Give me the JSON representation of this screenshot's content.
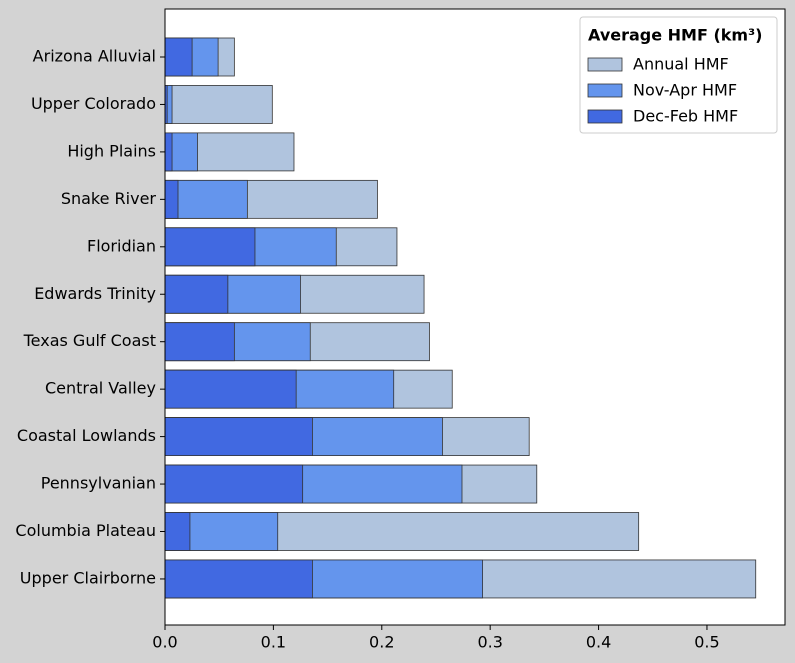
{
  "chart_data": {
    "type": "overlapping-barh",
    "categories": [
      "Arizona Alluvial",
      "Upper Colorado",
      "High Plains",
      "Snake River",
      "Floridian",
      "Edwards Trinity",
      "Texas Gulf Coast",
      "Central Valley",
      "Coastal Lowlands",
      "Pennsylvanian",
      "Columbia Plateau",
      "Upper Clairborne"
    ],
    "series": [
      {
        "name": "Annual HMF",
        "color": "#b0c4de",
        "values": [
          0.064,
          0.099,
          0.119,
          0.196,
          0.214,
          0.239,
          0.244,
          0.265,
          0.336,
          0.343,
          0.437,
          0.545
        ]
      },
      {
        "name": "Nov-Apr HMF",
        "color": "#6495ed",
        "values": [
          0.049,
          0.0065,
          0.03,
          0.076,
          0.158,
          0.125,
          0.134,
          0.211,
          0.256,
          0.274,
          0.104,
          0.293
        ]
      },
      {
        "name": "Dec-Feb HMF",
        "color": "#4169e1",
        "values": [
          0.025,
          0.002,
          0.0065,
          0.012,
          0.083,
          0.058,
          0.064,
          0.121,
          0.136,
          0.127,
          0.023,
          0.136
        ]
      }
    ],
    "legend_title": "Average HMF (km³)",
    "legend_position": "upper right",
    "xlim": [
      0,
      0.572
    ],
    "xticks": [
      {
        "value": 0,
        "label": "0.0"
      },
      0.1,
      0.2,
      0.3,
      0.4,
      0.5
    ]
  }
}
